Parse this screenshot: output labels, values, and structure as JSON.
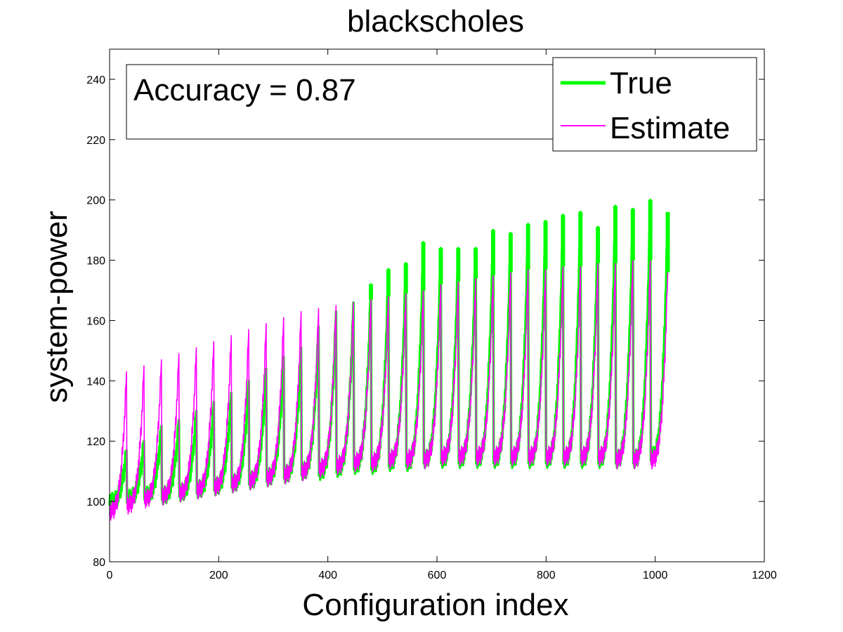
{
  "chart_data": {
    "type": "line",
    "title": "blackscholes",
    "xlabel": "Configuration index",
    "ylabel": "system-power",
    "xlim": [
      0,
      1200
    ],
    "ylim": [
      80,
      250
    ],
    "xticks": [
      0,
      200,
      400,
      600,
      800,
      1000,
      1200
    ],
    "yticks": [
      80,
      100,
      120,
      140,
      160,
      180,
      200,
      220,
      240
    ],
    "grid": false,
    "legend_position": "top-right",
    "annotation": "Accuracy = 0.87",
    "period": 32,
    "n_points": 1024,
    "series": [
      {
        "name": "True",
        "color": "#00ff00",
        "cycle_min": [
          100,
          101,
          102,
          102,
          103,
          104,
          105,
          106,
          107,
          108,
          109,
          110,
          110,
          111,
          112,
          112,
          113,
          113,
          114,
          114,
          114,
          114,
          114,
          114,
          114,
          114,
          114,
          114,
          114,
          114,
          114,
          115
        ],
        "cycle_peak": [
          117,
          120,
          125,
          127,
          130,
          133,
          136,
          140,
          144,
          148,
          151,
          158,
          163,
          166,
          172,
          177,
          179,
          186,
          184,
          184,
          184,
          190,
          189,
          192,
          193,
          195,
          196,
          191,
          198,
          197,
          200,
          196
        ]
      },
      {
        "name": "Estimate",
        "color": "#ff00ff",
        "cycle_min": [
          97,
          99,
          101,
          102,
          103,
          104,
          105,
          106,
          107,
          108,
          109,
          110,
          111,
          112,
          113,
          113,
          114,
          114,
          114,
          115,
          115,
          115,
          115,
          115,
          115,
          115,
          115,
          115,
          115,
          114,
          114,
          114
        ],
        "cycle_peak": [
          143,
          145,
          147,
          149,
          151,
          153,
          155,
          157,
          159,
          161,
          163,
          164,
          165,
          166,
          167,
          168,
          169,
          170,
          172,
          173,
          174,
          175,
          176,
          177,
          177,
          178,
          178,
          179,
          179,
          180,
          180,
          176
        ]
      }
    ]
  }
}
